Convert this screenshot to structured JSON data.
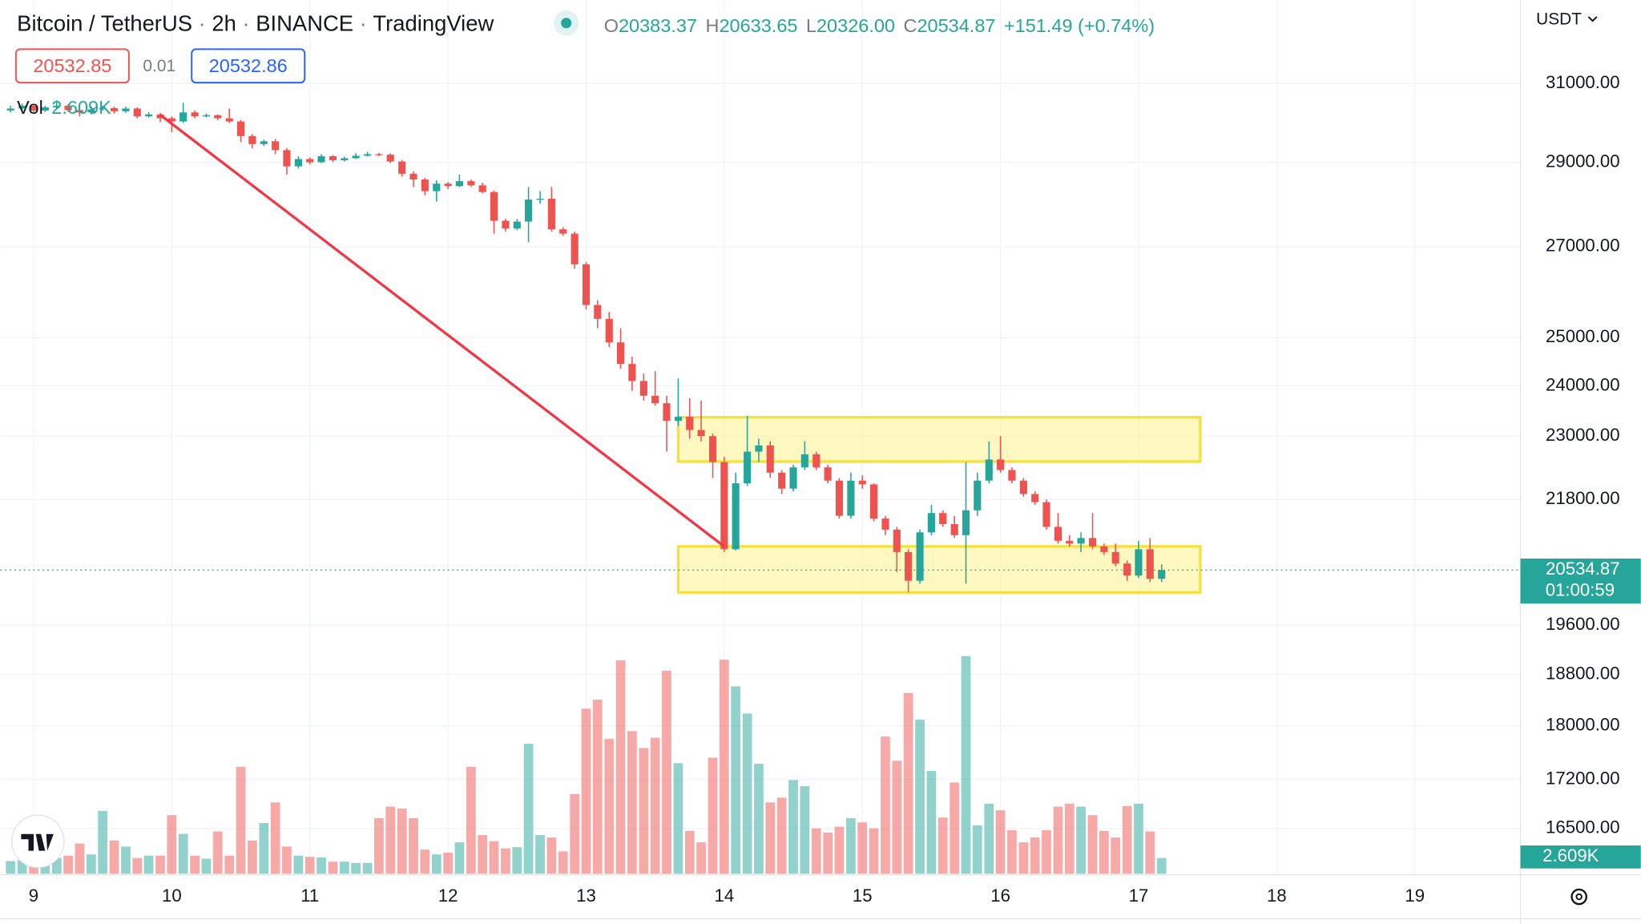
{
  "chart_data": {
    "type": "candlestick",
    "title": "Bitcoin / TetherUS",
    "interval": "2h",
    "exchange": "BINANCE",
    "source": "TradingView",
    "ohlc_prefixes": [
      "O",
      "H",
      "L",
      "C"
    ],
    "last_labels": {
      "open": "20383.37",
      "high": "20633.65",
      "low": "20326.00",
      "close": "20534.87"
    },
    "change": "+151.49 (+0.74%)",
    "bid": 20532.85,
    "spread": 0.01,
    "ask": 20532.86,
    "volume_name": "Vol",
    "volume_label": "2.609K",
    "currency": "USDT",
    "countdown": "01:00:59",
    "up_color": "#26a69a",
    "down_color": "#ef5350",
    "log_scale": true,
    "grid": true,
    "xlim": [
      8.758,
      19.765
    ],
    "xticks": [
      9,
      10,
      11,
      12,
      13,
      14,
      15,
      16,
      17,
      18,
      19
    ],
    "ylim": [
      15880,
      33270
    ],
    "yticks": [
      {
        "value": 31000,
        "label": "31000.00"
      },
      {
        "value": 29000,
        "label": "29000.00"
      },
      {
        "value": 27000,
        "label": "27000.00"
      },
      {
        "value": 25000,
        "label": "25000.00"
      },
      {
        "value": 24000,
        "label": "24000.00"
      },
      {
        "value": 23000,
        "label": "23000.00"
      },
      {
        "value": 21800,
        "label": "21800.00"
      },
      {
        "value": 19600,
        "label": "19600.00"
      },
      {
        "value": 18800,
        "label": "18800.00"
      },
      {
        "value": 18000,
        "label": "18000.00"
      },
      {
        "value": 17200,
        "label": "17200.00"
      },
      {
        "value": 16500,
        "label": "16500.00"
      }
    ],
    "x": [
      8.833,
      8.917,
      9,
      9.083,
      9.167,
      9.25,
      9.333,
      9.417,
      9.5,
      9.583,
      9.667,
      9.75,
      9.833,
      9.917,
      10,
      10.083,
      10.167,
      10.25,
      10.333,
      10.417,
      10.5,
      10.583,
      10.667,
      10.75,
      10.833,
      10.917,
      11,
      11.083,
      11.167,
      11.25,
      11.333,
      11.417,
      11.5,
      11.583,
      11.667,
      11.75,
      11.833,
      11.917,
      12,
      12.083,
      12.167,
      12.25,
      12.333,
      12.417,
      12.5,
      12.583,
      12.667,
      12.75,
      12.833,
      12.917,
      13,
      13.083,
      13.167,
      13.25,
      13.333,
      13.417,
      13.5,
      13.583,
      13.667,
      13.75,
      13.833,
      13.917,
      14,
      14.083,
      14.167,
      14.25,
      14.333,
      14.417,
      14.5,
      14.583,
      14.667,
      14.75,
      14.833,
      14.917,
      15,
      15.083,
      15.167,
      15.25,
      15.333,
      15.417,
      15.5,
      15.583,
      15.667,
      15.75,
      15.833,
      15.917,
      16,
      16.083,
      16.167,
      16.25,
      16.333,
      16.417,
      16.5,
      16.583,
      16.667,
      16.75,
      16.833,
      16.917,
      17,
      17.083,
      17.167
    ],
    "open": [
      30300,
      30350,
      30420,
      30300,
      30380,
      30420,
      30310,
      30250,
      30330,
      30360,
      30280,
      30350,
      30150,
      30200,
      30100,
      30020,
      30250,
      30150,
      30180,
      30100,
      30020,
      29650,
      29450,
      29520,
      29300,
      28900,
      29080,
      29000,
      29150,
      29050,
      29100,
      29160,
      29200,
      29190,
      29020,
      28720,
      28580,
      28300,
      28480,
      28420,
      28540,
      28440,
      28280,
      27600,
      27420,
      27580,
      28100,
      28120,
      27400,
      27300,
      26600,
      25700,
      25400,
      24900,
      24450,
      24100,
      23800,
      23650,
      23300,
      23380,
      23120,
      23000,
      22500,
      20900,
      22100,
      22700,
      22820,
      22300,
      22000,
      22400,
      22650,
      22400,
      22150,
      21500,
      22150,
      22080,
      21450,
      21250,
      20850,
      20350,
      21200,
      21550,
      21350,
      21150,
      21600,
      22150,
      22550,
      22350,
      22150,
      21900,
      21750,
      21300,
      21050,
      21000,
      21100,
      20950,
      20850,
      20650,
      20440,
      20900,
      20383.37
    ],
    "high": [
      30420,
      30480,
      30450,
      30420,
      30560,
      30460,
      30350,
      30400,
      30420,
      30400,
      30400,
      30380,
      30260,
      30240,
      30150,
      30500,
      30300,
      30220,
      30200,
      30350,
      30060,
      29700,
      29560,
      29580,
      29350,
      29150,
      29120,
      29200,
      29180,
      29140,
      29220,
      29260,
      29230,
      29220,
      29060,
      28780,
      28620,
      28560,
      28520,
      28700,
      28580,
      28500,
      28320,
      27650,
      27640,
      28400,
      28300,
      28400,
      27450,
      27350,
      26650,
      25800,
      25550,
      25200,
      24600,
      24250,
      24300,
      23800,
      24150,
      23750,
      23700,
      23050,
      22600,
      22300,
      23400,
      22950,
      22900,
      22350,
      22450,
      22900,
      22700,
      22450,
      22200,
      22300,
      22250,
      22100,
      21500,
      21300,
      20900,
      21250,
      21700,
      21600,
      21500,
      22500,
      22300,
      22900,
      23000,
      22400,
      22200,
      21950,
      21800,
      21550,
      21150,
      21200,
      21550,
      21000,
      21000,
      20700,
      21050,
      21100,
      20633.65
    ],
    "low": [
      30250,
      30300,
      30250,
      30260,
      30350,
      30260,
      30150,
      30200,
      30300,
      30220,
      30240,
      30100,
      30120,
      30000,
      29750,
      29980,
      30100,
      30120,
      30050,
      29980,
      29500,
      29350,
      29400,
      29200,
      28700,
      28850,
      28950,
      28980,
      29000,
      29020,
      29080,
      29140,
      29150,
      28980,
      28650,
      28400,
      28200,
      28050,
      28350,
      28400,
      28400,
      28250,
      27300,
      27350,
      27380,
      27100,
      28000,
      27350,
      27250,
      26500,
      25600,
      25200,
      24800,
      24350,
      23900,
      23700,
      23600,
      22700,
      23200,
      22950,
      22900,
      22200,
      20850,
      20880,
      22050,
      22500,
      22200,
      21900,
      21950,
      22350,
      22350,
      22100,
      21450,
      21450,
      22000,
      21400,
      21150,
      20500,
      20150,
      20300,
      21150,
      21300,
      21100,
      20300,
      21500,
      22100,
      22300,
      22100,
      21850,
      21700,
      21250,
      21000,
      20950,
      20850,
      20900,
      20800,
      20600,
      20350,
      20400,
      20330,
      20326
    ],
    "close": [
      30350,
      30420,
      30300,
      30380,
      30420,
      30310,
      30250,
      30330,
      30360,
      30280,
      30350,
      30150,
      30200,
      30100,
      30020,
      30250,
      30150,
      30180,
      30100,
      30020,
      29650,
      29450,
      29520,
      29300,
      28900,
      29080,
      29000,
      29150,
      29050,
      29100,
      29160,
      29200,
      29190,
      29020,
      28720,
      28580,
      28300,
      28480,
      28420,
      28540,
      28440,
      28280,
      27600,
      27420,
      27580,
      28100,
      28120,
      27400,
      27300,
      26600,
      25700,
      25400,
      24900,
      24450,
      24100,
      23800,
      23650,
      23300,
      23380,
      23120,
      23000,
      22500,
      20900,
      22100,
      22700,
      22820,
      22300,
      22000,
      22400,
      22650,
      22400,
      22150,
      21500,
      22150,
      22080,
      21450,
      21250,
      20850,
      20350,
      21200,
      21550,
      21350,
      21150,
      21600,
      22150,
      22550,
      22350,
      22150,
      21900,
      21750,
      21300,
      21050,
      21000,
      21100,
      20950,
      20850,
      20650,
      20440,
      20900,
      20383.37,
      20534.87
    ],
    "volume": [
      2.1,
      2.3,
      2.0,
      2.5,
      2.6,
      3.0,
      5.0,
      3.2,
      10.4,
      5.5,
      4.5,
      2.6,
      3.0,
      3.0,
      9.7,
      6.6,
      3.0,
      2.5,
      7.0,
      3.0,
      17.7,
      5.5,
      8.4,
      11.8,
      4.5,
      3.0,
      2.8,
      2.7,
      2.0,
      2.0,
      1.8,
      1.8,
      9.2,
      11.1,
      10.8,
      9.2,
      4.0,
      3.2,
      3.5,
      5.2,
      17.7,
      6.4,
      5.4,
      4.2,
      4.4,
      21.5,
      6.4,
      6.0,
      3.7,
      13.2,
      27.3,
      28.8,
      22.3,
      35.3,
      23.6,
      20.8,
      22.5,
      33.6,
      18.3,
      7.1,
      5.2,
      19.2,
      35.4,
      31.0,
      26.5,
      18.2,
      11.8,
      12.6,
      15.5,
      14.5,
      7.5,
      6.8,
      7.8,
      9.2,
      8.5,
      7.5,
      22.7,
      18.7,
      29.9,
      25.5,
      17.0,
      9.3,
      15.1,
      36.0,
      8.0,
      11.6,
      10.5,
      7.2,
      5.2,
      6.0,
      7.2,
      11.1,
      11.6,
      11.1,
      9.7,
      7.1,
      6.0,
      11.2,
      11.6,
      7.0,
      2.609
    ],
    "zones": [
      {
        "xlim": [
          13.667,
          17.447
        ],
        "ylim": [
          22510,
          23370
        ]
      },
      {
        "xlim": [
          13.667,
          17.447
        ],
        "ylim": [
          20150,
          20950
        ]
      }
    ],
    "trend_line": {
      "x": [
        9.917,
        14.0
      ],
      "y": [
        30186,
        20950
      ]
    }
  }
}
